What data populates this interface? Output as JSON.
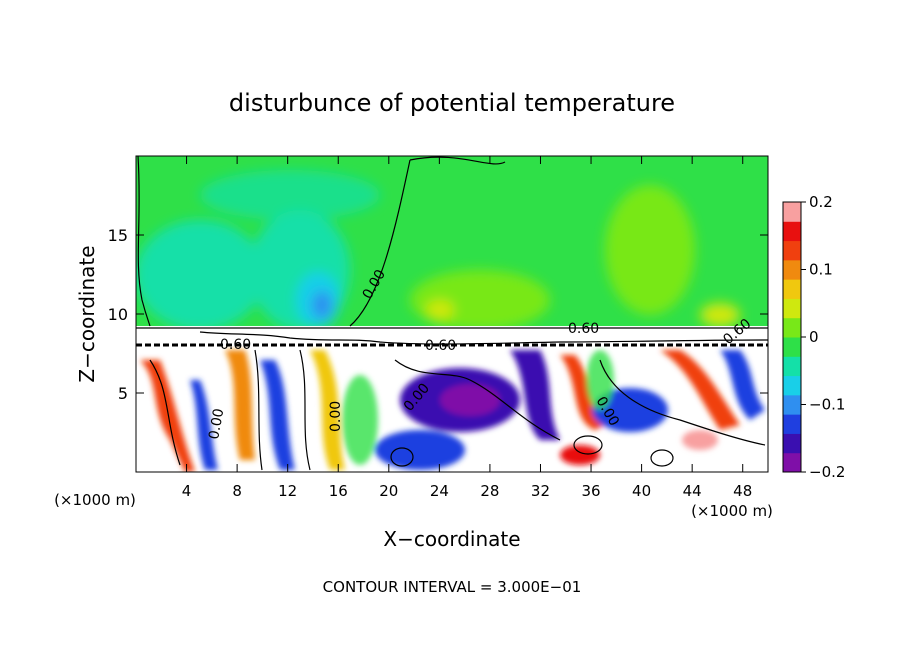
{
  "chart_data": {
    "type": "heatmap",
    "title": "disturbunce of potential temperature",
    "xlabel": "X−coordinate",
    "ylabel": "Z−coordinate",
    "x_unit": "(×1000 m)",
    "footer": "CONTOUR INTERVAL = 3.000E−01",
    "xlim": [
      0,
      50
    ],
    "ylim": [
      0,
      20
    ],
    "x_ticks": [
      4,
      8,
      12,
      16,
      20,
      24,
      28,
      32,
      36,
      40,
      44,
      48
    ],
    "y_ticks": [
      5,
      10,
      15
    ],
    "colorbar": {
      "range": [
        -0.2,
        0.2
      ],
      "ticks": [
        0.2,
        0.1,
        0,
        -0.1,
        -0.2
      ],
      "tick_labels": [
        "0.2",
        "0.1",
        "0",
        "−0.1",
        "−0.2"
      ],
      "colors": [
        "#7f0fa8",
        "#3a0fb0",
        "#1f3fe0",
        "#2f8ff0",
        "#19cfe8",
        "#14e0a8",
        "#2ee048",
        "#78e818",
        "#cfe80f",
        "#f0c80f",
        "#f08a0f",
        "#f0400f",
        "#e8100f",
        "#f8a0a0"
      ]
    },
    "contour_interval": 0.3,
    "contour_labels": [
      {
        "text": "0.00",
        "x": 18.5,
        "z": 11.2
      },
      {
        "text": "0.60",
        "x": 35.5,
        "z": 9.2
      },
      {
        "text": "0.60",
        "x": 8,
        "z": 8.1
      },
      {
        "text": "0.60",
        "x": 24.5,
        "z": 8.1
      },
      {
        "text": "0.60",
        "x": 47.3,
        "z": 8.7
      },
      {
        "text": "0.00",
        "x": 6.5,
        "z": 3.3
      },
      {
        "text": "0.00",
        "x": 15.3,
        "z": 4
      },
      {
        "text": "0.00",
        "x": 23.5,
        "z": 5
      },
      {
        "text": "0.00",
        "x": 37,
        "z": 4.3
      }
    ]
  }
}
